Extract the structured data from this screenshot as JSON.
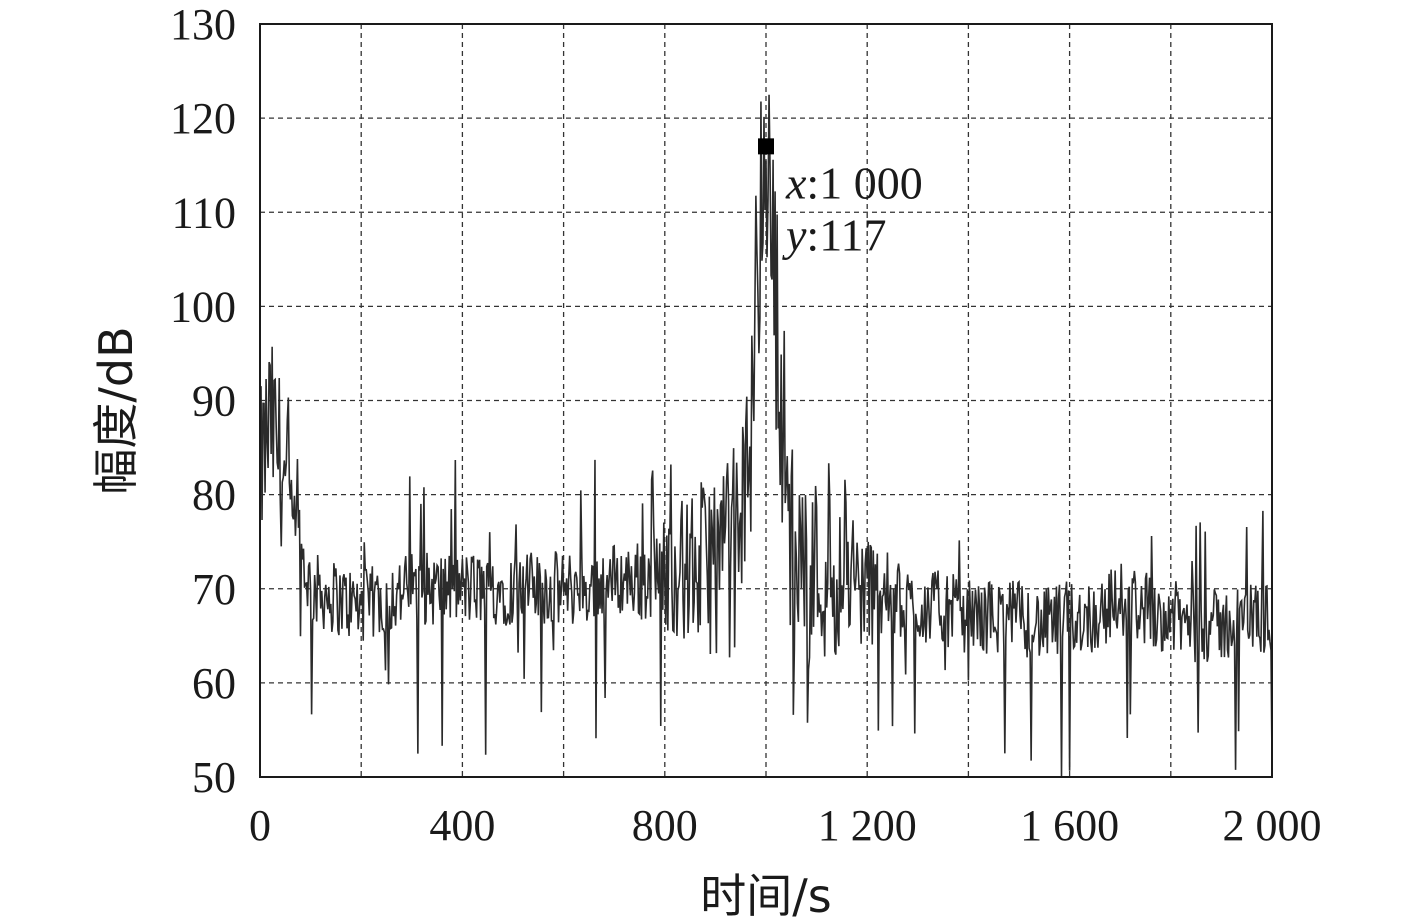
{
  "chart_data": {
    "type": "line",
    "xlabel": "时间/s",
    "ylabel": "幅度/dB",
    "xlim": [
      0,
      2000
    ],
    "ylim": [
      50,
      130
    ],
    "x_ticks": [
      0,
      400,
      800,
      1200,
      1600,
      2000
    ],
    "x_tick_labels": [
      "0",
      "400",
      "800",
      "1 200",
      "1 600",
      "2 000"
    ],
    "y_ticks": [
      50,
      60,
      70,
      80,
      90,
      100,
      110,
      120,
      130
    ],
    "y_tick_labels": [
      "50",
      "60",
      "70",
      "80",
      "90",
      "100",
      "110",
      "120",
      "130"
    ],
    "grid": true,
    "series": [
      {
        "x": [
          0,
          20,
          40,
          60,
          80,
          100,
          150,
          200,
          250,
          300,
          350,
          400,
          450,
          500,
          550,
          600,
          650,
          700,
          750,
          800,
          850,
          900,
          950,
          1000,
          1050,
          1100,
          1150,
          1200,
          1250,
          1300,
          1350,
          1400,
          1450,
          1500,
          1550,
          1600,
          1650,
          1700,
          1750,
          1800,
          1850,
          1900,
          1950,
          2000
        ],
        "y": [
          82,
          88,
          84,
          78,
          74,
          70,
          69,
          68,
          69,
          70,
          70,
          70,
          70,
          70,
          70,
          70,
          70,
          71,
          71,
          72,
          72,
          73,
          74,
          117,
          74,
          72,
          71,
          70,
          69,
          68,
          68,
          67,
          67,
          67,
          66,
          67,
          67,
          69,
          68,
          67,
          66,
          66,
          67,
          67
        ]
      }
    ],
    "marker": {
      "x": 1000,
      "y": 117
    }
  },
  "annotation": {
    "x_label": "x",
    "x_value": ":1 000",
    "y_label": "y",
    "y_value": ":117"
  },
  "colors": {
    "line": "#2b2b2b",
    "grid": "#333333",
    "axis": "#1a1a1a"
  }
}
